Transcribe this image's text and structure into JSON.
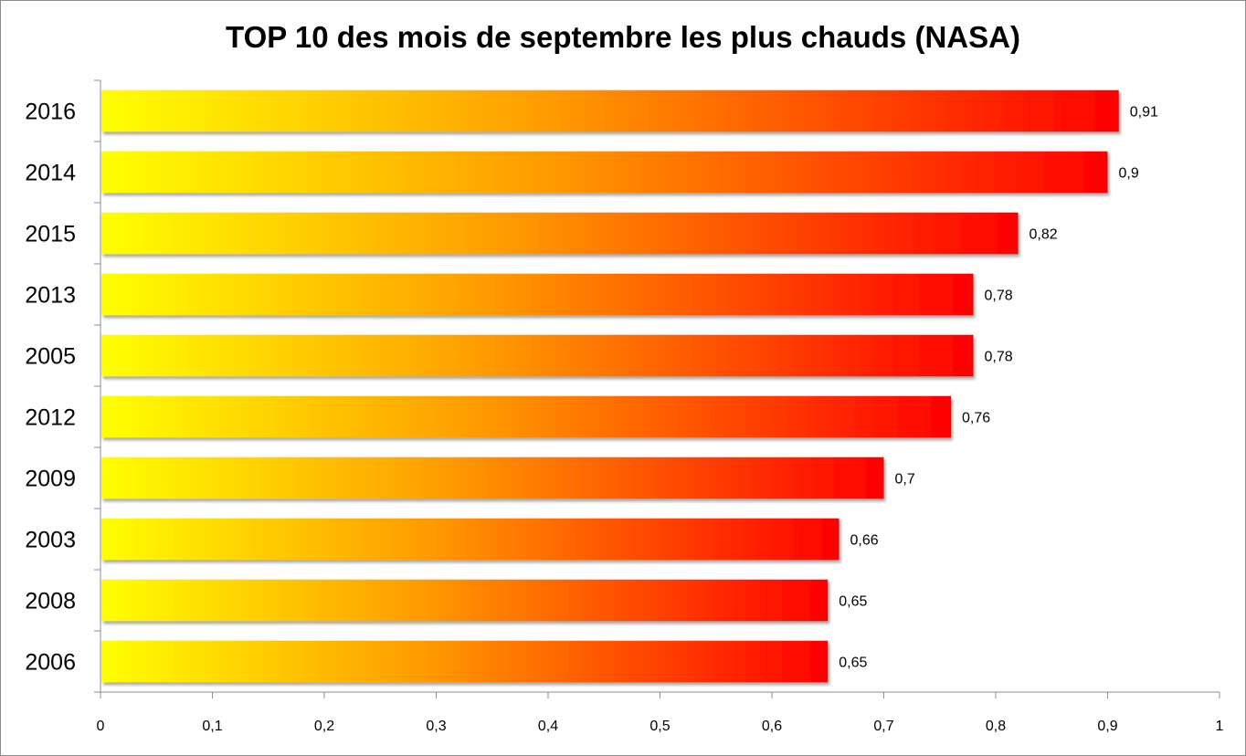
{
  "chart_data": {
    "type": "bar",
    "orientation": "horizontal",
    "title": "TOP 10 des mois de septembre les plus chauds (NASA)",
    "categories": [
      "2016",
      "2014",
      "2015",
      "2013",
      "2005",
      "2012",
      "2009",
      "2003",
      "2008",
      "2006"
    ],
    "values": [
      0.91,
      0.9,
      0.82,
      0.78,
      0.78,
      0.76,
      0.7,
      0.66,
      0.65,
      0.65
    ],
    "data_labels": [
      "0,91",
      "0,9",
      "0,82",
      "0,78",
      "0,78",
      "0,76",
      "0,7",
      "0,66",
      "0,65",
      "0,65"
    ],
    "xticks": [
      0,
      0.1,
      0.2,
      0.3,
      0.4,
      0.5,
      0.6,
      0.7,
      0.8,
      0.9,
      1
    ],
    "xtick_labels": [
      "0",
      "0,1",
      "0,2",
      "0,3",
      "0,4",
      "0,5",
      "0,6",
      "0,7",
      "0,8",
      "0,9",
      "1"
    ],
    "xlim": [
      0,
      1
    ],
    "xlabel": "",
    "ylabel": "",
    "grid": false,
    "legend": false,
    "colors": {
      "gradient_start": "#ffff00",
      "gradient_mid": "#ff9900",
      "gradient_end": "#ff0000"
    }
  }
}
